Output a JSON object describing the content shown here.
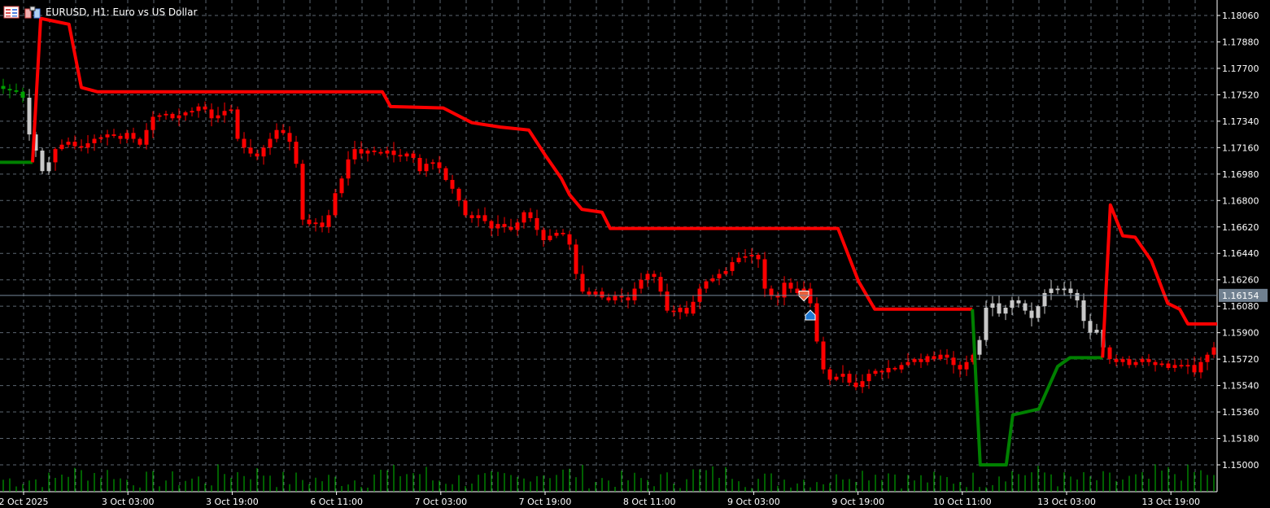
{
  "window": {
    "title": "EURUSD, H1:  Euro vs US Dollar",
    "icons": [
      "chart-list-icon",
      "one-click-trading-icon"
    ]
  },
  "colors": {
    "background": "#000000",
    "grid": "#5c6670",
    "bear_candle": "#ff0000",
    "bull_candle": "#c8c8c8",
    "supertrend_down": "#ff0000",
    "supertrend_up": "#008000",
    "volume": "#00c000",
    "price_label_bg": "#708090",
    "sell_arrow": "#e8603c",
    "buy_arrow": "#1e78d2"
  },
  "chart_data": {
    "type": "candlestick",
    "symbol": "EURUSD",
    "timeframe": "H1",
    "y_ticks": [
      "1.18060",
      "1.17880",
      "1.17700",
      "1.17520",
      "1.17340",
      "1.17160",
      "1.16980",
      "1.16800",
      "1.16620",
      "1.16440",
      "1.16260",
      "1.16080",
      "1.15900",
      "1.15720",
      "1.15540",
      "1.15360",
      "1.15180",
      "1.15000"
    ],
    "ylim": [
      1.1488,
      1.1816
    ],
    "x_ticks": [
      "2 Oct 2025",
      "3 Oct 03:00",
      "3 Oct 19:00",
      "6 Oct 11:00",
      "7 Oct 03:00",
      "7 Oct 19:00",
      "8 Oct 11:00",
      "9 Oct 03:00",
      "9 Oct 19:00",
      "10 Oct 11:00",
      "13 Oct 03:00",
      "13 Oct 19:00"
    ],
    "x_tick_every_bars": 16,
    "current_price": "1.16154",
    "closes": [
      1.1756,
      1.1755,
      1.1754,
      1.175,
      1.1725,
      1.1714,
      1.17,
      1.1706,
      1.1715,
      1.1718,
      1.172,
      1.1717,
      1.1716,
      1.1719,
      1.1722,
      1.1723,
      1.1725,
      1.1724,
      1.1722,
      1.1726,
      1.1722,
      1.1718,
      1.1728,
      1.1737,
      1.1738,
      1.1739,
      1.1736,
      1.1738,
      1.174,
      1.1741,
      1.1744,
      1.1742,
      1.1736,
      1.1738,
      1.1741,
      1.1742,
      1.1722,
      1.1716,
      1.1712,
      1.171,
      1.1716,
      1.1722,
      1.1728,
      1.1726,
      1.172,
      1.1705,
      1.1667,
      1.1664,
      1.1665,
      1.1662,
      1.167,
      1.1685,
      1.1695,
      1.1708,
      1.1715,
      1.1712,
      1.1714,
      1.1713,
      1.1712,
      1.1714,
      1.1711,
      1.171,
      1.1712,
      1.1709,
      1.17,
      1.1705,
      1.1706,
      1.1702,
      1.1694,
      1.1688,
      1.168,
      1.167,
      1.1668,
      1.167,
      1.1666,
      1.1661,
      1.1664,
      1.1662,
      1.166,
      1.1665,
      1.1672,
      1.1668,
      1.166,
      1.1653,
      1.1656,
      1.1658,
      1.1657,
      1.165,
      1.163,
      1.1618,
      1.1616,
      1.1618,
      1.1614,
      1.1612,
      1.1615,
      1.1614,
      1.1612,
      1.162,
      1.1626,
      1.163,
      1.1628,
      1.1618,
      1.1605,
      1.1604,
      1.1607,
      1.1603,
      1.1611,
      1.162,
      1.1625,
      1.1627,
      1.163,
      1.1632,
      1.1638,
      1.1641,
      1.1642,
      1.1643,
      1.164,
      1.162,
      1.1615,
      1.1614,
      1.1624,
      1.162,
      1.1617,
      1.162,
      1.161,
      1.1584,
      1.1565,
      1.1558,
      1.156,
      1.1562,
      1.1556,
      1.1553,
      1.1557,
      1.1562,
      1.1564,
      1.1563,
      1.1566,
      1.1565,
      1.1568,
      1.157,
      1.1572,
      1.157,
      1.1574,
      1.1572,
      1.1575,
      1.1573,
      1.1568,
      1.1565,
      1.157,
      1.1575,
      1.1585,
      1.1607,
      1.161,
      1.1603,
      1.1607,
      1.1612,
      1.161,
      1.1605,
      1.16,
      1.1608,
      1.1617,
      1.162,
      1.1619,
      1.162,
      1.1617,
      1.1612,
      1.1598,
      1.159,
      1.1592,
      1.158,
      1.1572,
      1.157,
      1.1572,
      1.1568,
      1.157,
      1.1572,
      1.157,
      1.1568,
      1.1569,
      1.1566,
      1.1568,
      1.1567,
      1.1568,
      1.1563,
      1.157,
      1.1575,
      1.158
    ],
    "candle_color_ranges": [
      {
        "from": 0,
        "to": 3,
        "color": "#00a000"
      },
      {
        "from": 4,
        "to": 7,
        "color": "#c8c8c8"
      },
      {
        "from": 150,
        "to": 169,
        "color": "#c8c8c8"
      }
    ],
    "supertrend": [
      {
        "trend": "up",
        "points": [
          [
            -0.5,
            1.1706
          ],
          [
            4.5,
            1.1706
          ]
        ]
      },
      {
        "trend": "down",
        "points": [
          [
            4.5,
            1.1706
          ],
          [
            5.75,
            1.1804
          ],
          [
            10.1,
            1.18
          ],
          [
            12,
            1.1757
          ],
          [
            14.5,
            1.1754
          ],
          [
            58.25,
            1.1754
          ],
          [
            59.5,
            1.1744
          ],
          [
            67.6,
            1.1743
          ],
          [
            72,
            1.1733
          ],
          [
            76.4,
            1.173
          ],
          [
            80.75,
            1.1728
          ],
          [
            83.25,
            1.1711
          ],
          [
            85.75,
            1.1695
          ],
          [
            87,
            1.1684
          ],
          [
            88.9,
            1.1674
          ],
          [
            92,
            1.1672
          ],
          [
            93.25,
            1.1661
          ],
          [
            128.25,
            1.1661
          ],
          [
            131.4,
            1.1625
          ],
          [
            133.9,
            1.1606
          ],
          [
            148.9,
            1.1606
          ]
        ]
      },
      {
        "trend": "up",
        "points": [
          [
            148.9,
            1.1606
          ],
          [
            150.1,
            1.15
          ],
          [
            154.1,
            1.15
          ],
          [
            155.1,
            1.1534
          ],
          [
            159.1,
            1.1538
          ],
          [
            162,
            1.1567
          ],
          [
            163.9,
            1.1573
          ],
          [
            168.9,
            1.1573
          ]
        ]
      },
      {
        "trend": "down",
        "points": [
          [
            168.9,
            1.1573
          ],
          [
            170.1,
            1.1677
          ],
          [
            172,
            1.1656
          ],
          [
            173.9,
            1.1655
          ],
          [
            176.4,
            1.1639
          ],
          [
            178.9,
            1.161
          ],
          [
            180.75,
            1.1606
          ],
          [
            182,
            1.1596
          ],
          [
            186.5,
            1.1596
          ]
        ]
      }
    ],
    "signals": [
      {
        "type": "sell",
        "bar": 123,
        "price": 1.1615
      },
      {
        "type": "buy",
        "bar": 124,
        "price": 1.1602
      }
    ]
  }
}
